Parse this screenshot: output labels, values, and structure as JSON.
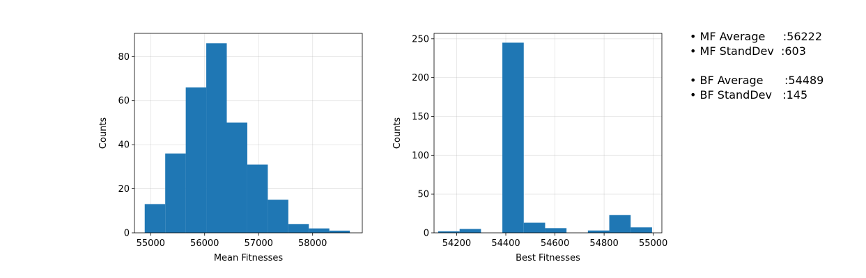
{
  "chart_data": [
    {
      "type": "bar",
      "title": "",
      "xlabel": "Mean Fitnesses",
      "ylabel": "Counts",
      "xlim": [
        54700,
        58920
      ],
      "ylim": [
        0,
        90.5
      ],
      "grid": true,
      "xticks": [
        {
          "value": 55000,
          "label": "55000"
        },
        {
          "value": 56000,
          "label": "56000"
        },
        {
          "value": 57000,
          "label": "57000"
        },
        {
          "value": 58000,
          "label": "58000"
        }
      ],
      "yticks": [
        {
          "value": 0,
          "label": "0"
        },
        {
          "value": 20,
          "label": "20"
        },
        {
          "value": 40,
          "label": "40"
        },
        {
          "value": 60,
          "label": "60"
        },
        {
          "value": 80,
          "label": "80"
        }
      ],
      "bins": [
        {
          "x0": 54890,
          "x1": 55270,
          "count": 13
        },
        {
          "x0": 55270,
          "x1": 55650,
          "count": 36
        },
        {
          "x0": 55650,
          "x1": 56030,
          "count": 66
        },
        {
          "x0": 56030,
          "x1": 56410,
          "count": 86
        },
        {
          "x0": 56410,
          "x1": 56790,
          "count": 50
        },
        {
          "x0": 56790,
          "x1": 57170,
          "count": 31
        },
        {
          "x0": 57170,
          "x1": 57550,
          "count": 15
        },
        {
          "x0": 57550,
          "x1": 57930,
          "count": 4
        },
        {
          "x0": 57930,
          "x1": 58310,
          "count": 2
        },
        {
          "x0": 58310,
          "x1": 58690,
          "count": 1
        }
      ]
    },
    {
      "type": "bar",
      "title": "",
      "xlabel": "Best Fitnesses",
      "ylabel": "Counts",
      "xlim": [
        54108,
        55035
      ],
      "ylim": [
        0,
        257
      ],
      "grid": true,
      "xticks": [
        {
          "value": 54200,
          "label": "54200"
        },
        {
          "value": 54400,
          "label": "54400"
        },
        {
          "value": 54600,
          "label": "54600"
        },
        {
          "value": 54800,
          "label": "54800"
        },
        {
          "value": 55000,
          "label": "55000"
        }
      ],
      "yticks": [
        {
          "value": 0,
          "label": "0"
        },
        {
          "value": 50,
          "label": "50"
        },
        {
          "value": 100,
          "label": "100"
        },
        {
          "value": 150,
          "label": "150"
        },
        {
          "value": 200,
          "label": "200"
        },
        {
          "value": 250,
          "label": "250"
        }
      ],
      "bins": [
        {
          "x0": 54125,
          "x1": 54212,
          "count": 2
        },
        {
          "x0": 54212,
          "x1": 54299,
          "count": 5
        },
        {
          "x0": 54299,
          "x1": 54386,
          "count": 0
        },
        {
          "x0": 54386,
          "x1": 54473,
          "count": 245
        },
        {
          "x0": 54473,
          "x1": 54560,
          "count": 13
        },
        {
          "x0": 54560,
          "x1": 54647,
          "count": 6
        },
        {
          "x0": 54647,
          "x1": 54734,
          "count": 0
        },
        {
          "x0": 54734,
          "x1": 54821,
          "count": 3
        },
        {
          "x0": 54821,
          "x1": 54908,
          "count": 23
        },
        {
          "x0": 54908,
          "x1": 54995,
          "count": 7
        }
      ]
    }
  ],
  "stats": {
    "lines": [
      "• MF Average     :56222",
      "• MF StandDev  :603",
      "",
      "• BF Average      :54489",
      "• BF StandDev   :145"
    ]
  },
  "colors": {
    "bar": "#1f77b4",
    "grid": "#b0b0b0",
    "axis": "#000000"
  }
}
